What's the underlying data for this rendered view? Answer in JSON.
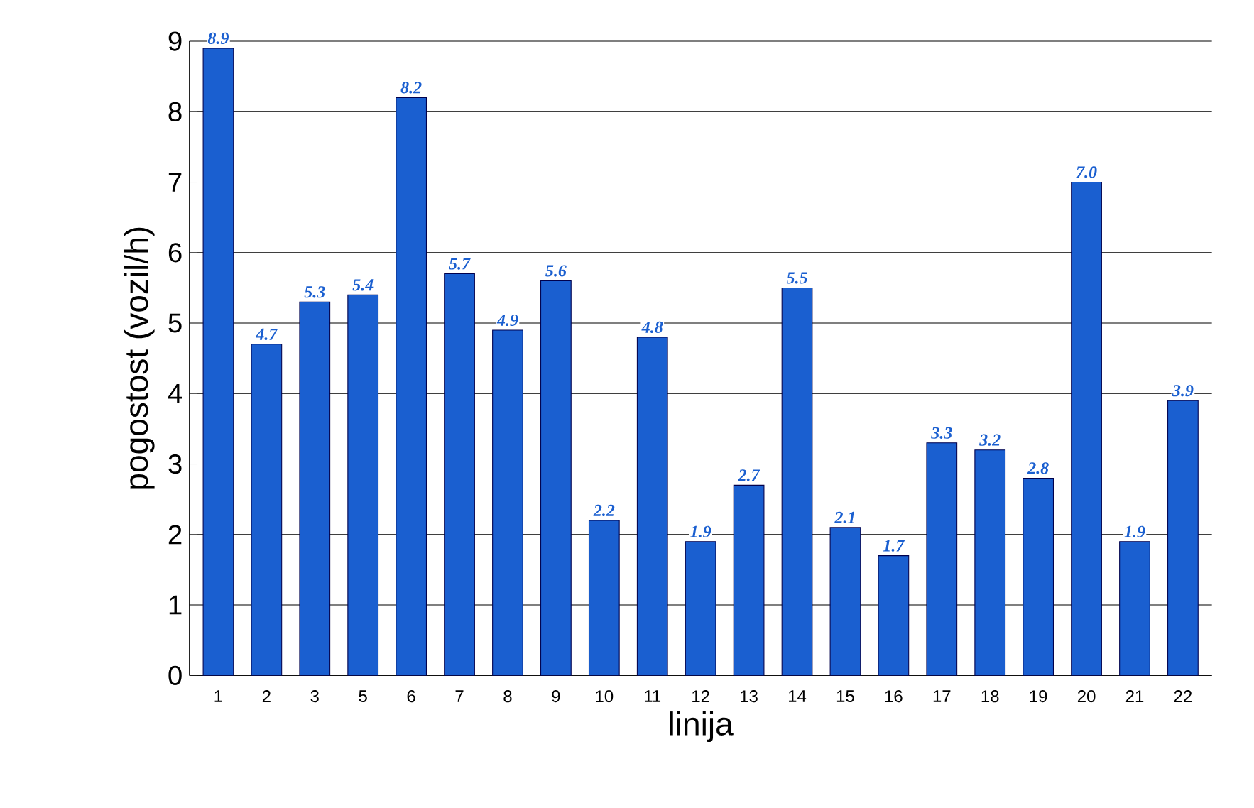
{
  "chart_data": {
    "type": "bar",
    "xlabel": "linija",
    "ylabel": "pogostost (vozil/h)",
    "categories": [
      "1",
      "2",
      "3",
      "5",
      "6",
      "7",
      "8",
      "9",
      "10",
      "11",
      "12",
      "13",
      "14",
      "15",
      "16",
      "17",
      "18",
      "19",
      "20",
      "21",
      "22"
    ],
    "values": [
      8.9,
      4.7,
      5.3,
      5.4,
      8.2,
      5.7,
      4.9,
      5.6,
      2.2,
      4.8,
      1.9,
      2.7,
      5.5,
      2.1,
      1.7,
      3.3,
      3.2,
      2.8,
      7.0,
      1.9,
      3.9
    ],
    "value_labels": [
      "8.9",
      "4.7",
      "5.3",
      "5.4",
      "8.2",
      "5.7",
      "4.9",
      "5.6",
      "2.2",
      "4.8",
      "1.9",
      "2.7",
      "5.5",
      "2.1",
      "1.7",
      "3.3",
      "3.2",
      "2.8",
      "7.0",
      "1.9",
      "3.9"
    ],
    "color": "#1a5fd0",
    "ylim": [
      0,
      9
    ],
    "yticks": [
      0,
      1,
      2,
      3,
      4,
      5,
      6,
      7,
      8,
      9
    ],
    "grid": "y"
  }
}
